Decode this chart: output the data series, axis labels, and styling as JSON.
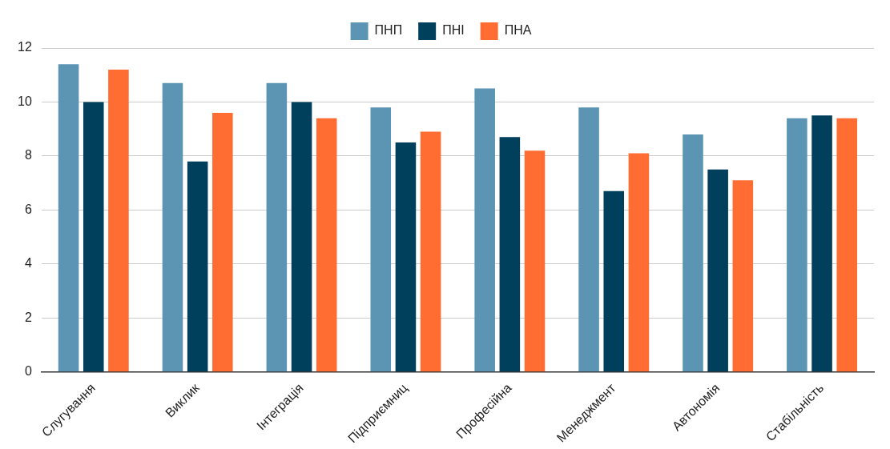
{
  "chart_data": {
    "type": "bar",
    "categories": [
      "Слугування",
      "Виклик",
      "Інтеграція",
      "Підприємниц",
      "Професійна",
      "Менеджмент",
      "Автономія",
      "Стабільність"
    ],
    "series": [
      {
        "name": "ПНП",
        "color": "#5b95b3",
        "values": [
          11.4,
          10.7,
          10.7,
          9.8,
          10.5,
          9.8,
          8.8,
          9.4
        ]
      },
      {
        "name": "ПНІ",
        "color": "#01405c",
        "values": [
          10,
          7.8,
          10,
          8.5,
          8.7,
          6.7,
          7.5,
          9.5
        ]
      },
      {
        "name": "ПНА",
        "color": "#ff6d33",
        "values": [
          11.2,
          9.6,
          9.4,
          8.9,
          8.2,
          8.1,
          7.1,
          9.4
        ]
      }
    ],
    "ylim": [
      0,
      12
    ],
    "yticks": [
      0,
      2,
      4,
      6,
      8,
      10,
      12
    ],
    "grid": "y",
    "legend": "top"
  }
}
